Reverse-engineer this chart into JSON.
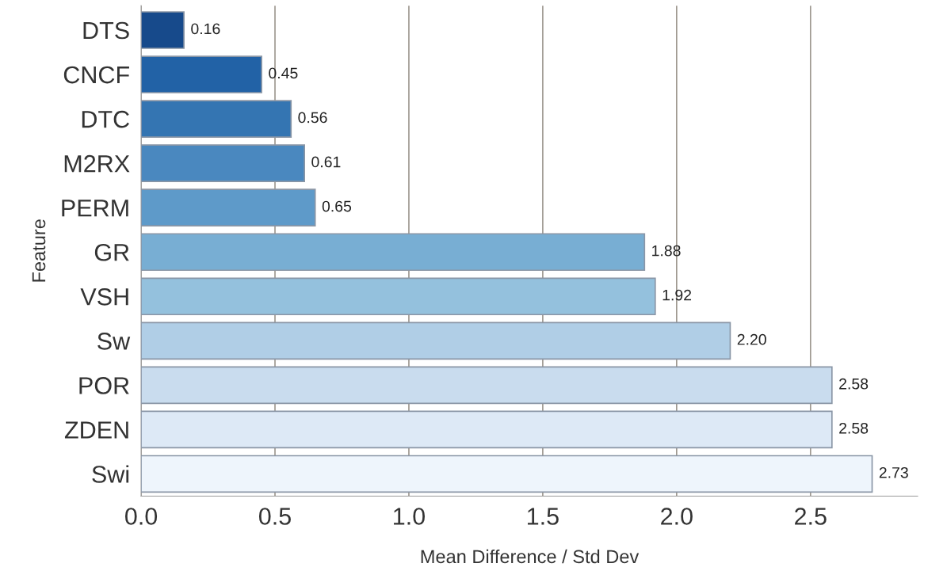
{
  "chart_data": {
    "type": "bar",
    "orientation": "horizontal",
    "xlabel": "Mean Difference / Std Dev",
    "ylabel": "Feature",
    "categories": [
      "DTS",
      "CNCF",
      "DTC",
      "M2RX",
      "PERM",
      "GR",
      "VSH",
      "Sw",
      "POR",
      "ZDEN",
      "Swi"
    ],
    "values": [
      0.16,
      0.45,
      0.56,
      0.61,
      0.65,
      1.88,
      1.92,
      2.2,
      2.58,
      2.58,
      2.73
    ],
    "colors": [
      "#174a8b",
      "#2262a6",
      "#3475b2",
      "#4a88bf",
      "#5e9ac9",
      "#78aed3",
      "#94c1dd",
      "#b0cee6",
      "#c9dcee",
      "#dde9f6",
      "#eef5fc"
    ],
    "value_labels": [
      "0.16",
      "0.45",
      "0.56",
      "0.61",
      "0.65",
      "1.88",
      "1.92",
      "2.20",
      "2.58",
      "2.58",
      "2.73"
    ],
    "xlim": [
      0,
      2.9
    ],
    "xticks": [
      {
        "value": 0,
        "label": "0.0"
      },
      0.5,
      {
        "value": 1,
        "label": "1.0"
      },
      1.5,
      {
        "value": 2,
        "label": "2.0"
      },
      2.5
    ],
    "grid": "x"
  }
}
